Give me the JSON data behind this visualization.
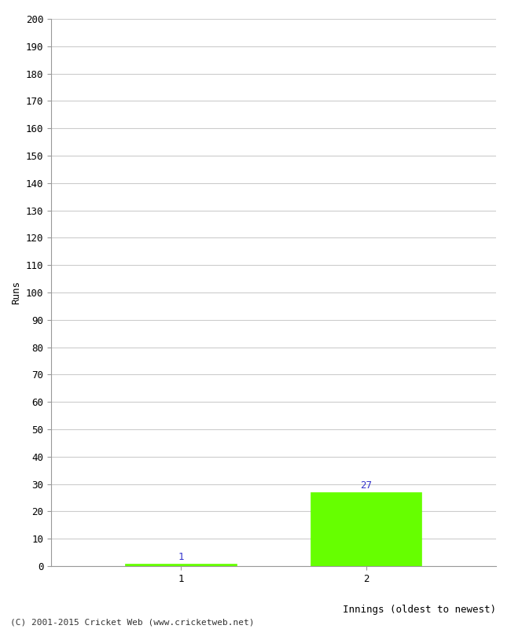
{
  "categories": [
    1,
    2
  ],
  "values": [
    1,
    27
  ],
  "bar_color": "#66ff00",
  "bar_edge_color": "#66ff00",
  "xlabel": "Innings (oldest to newest)",
  "ylabel": "Runs",
  "ylim": [
    0,
    200
  ],
  "yticks": [
    0,
    10,
    20,
    30,
    40,
    50,
    60,
    70,
    80,
    90,
    100,
    110,
    120,
    130,
    140,
    150,
    160,
    170,
    180,
    190,
    200
  ],
  "xticks": [
    1,
    2
  ],
  "value_labels": [
    "1",
    "27"
  ],
  "value_label_color": "#3333cc",
  "footer": "(C) 2001-2015 Cricket Web (www.cricketweb.net)",
  "background_color": "#ffffff",
  "grid_color": "#cccccc",
  "bar_width": 0.6,
  "xlim": [
    0.3,
    2.7
  ]
}
